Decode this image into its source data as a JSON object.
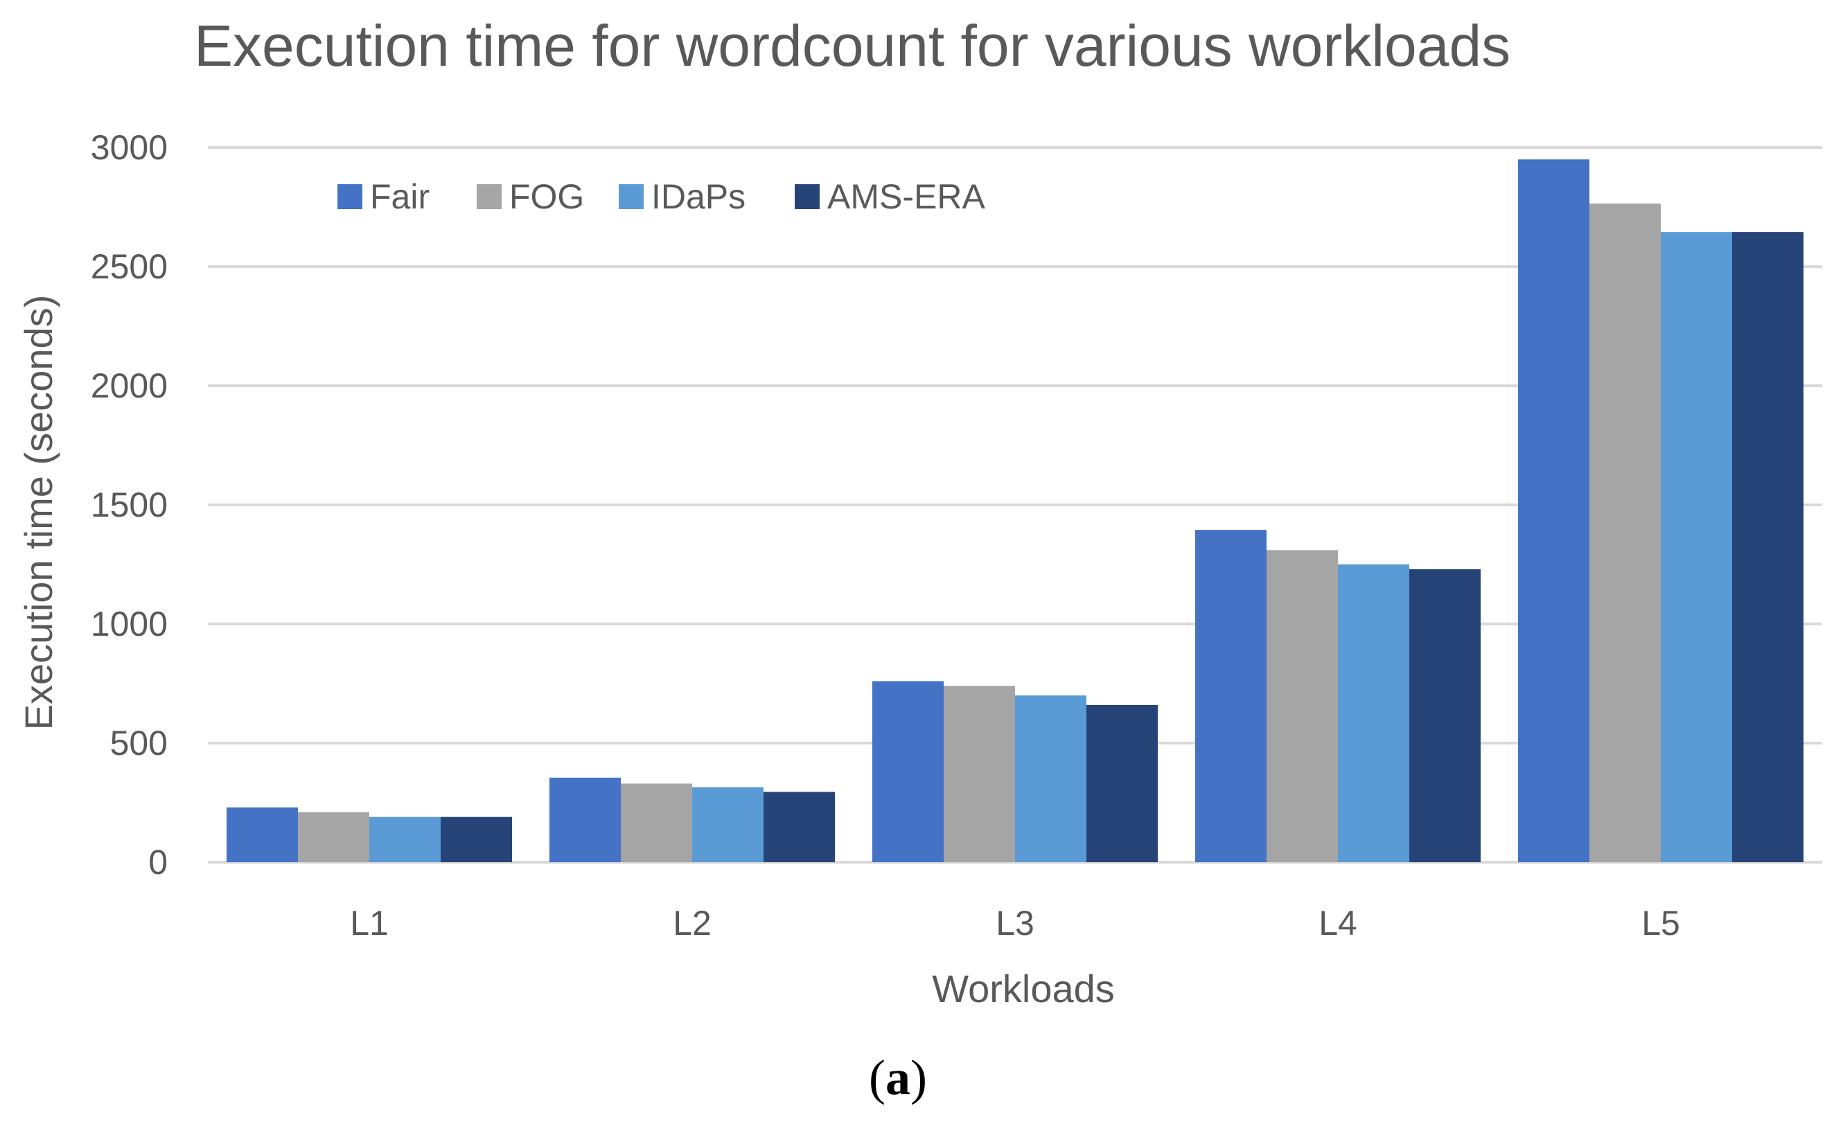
{
  "chart_data": {
    "type": "bar",
    "title": "Execution time for wordcount for various workloads",
    "xlabel": "Workloads",
    "ylabel": "Execution time (seconds)",
    "categories": [
      "L1",
      "L2",
      "L3",
      "L4",
      "L5"
    ],
    "ylim": [
      0,
      3000
    ],
    "yticks": [
      0,
      500,
      1000,
      1500,
      2000,
      2500,
      3000
    ],
    "grid": true,
    "legend_position": "top-left",
    "series": [
      {
        "name": "Fair",
        "color": "#4472c4",
        "values": [
          230,
          355,
          760,
          1395,
          2950
        ]
      },
      {
        "name": "FOG",
        "color": "#a5a5a5",
        "values": [
          210,
          330,
          740,
          1310,
          2765
        ]
      },
      {
        "name": "IDaPs",
        "color": "#5b9bd5",
        "values": [
          190,
          315,
          700,
          1250,
          2645
        ]
      },
      {
        "name": "AMS-ERA",
        "color": "#264478",
        "values": [
          190,
          295,
          660,
          1230,
          2645
        ]
      }
    ]
  },
  "caption": {
    "open": "(",
    "letter": "a",
    "close": ")"
  }
}
